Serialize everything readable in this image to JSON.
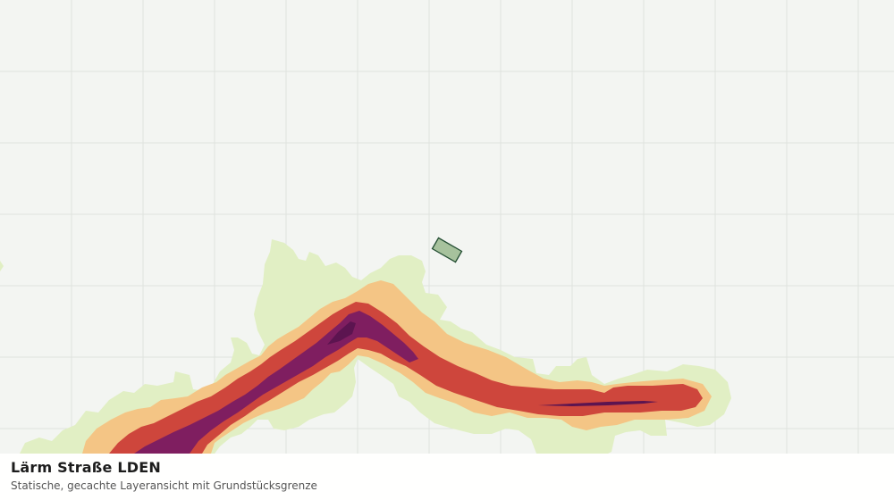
{
  "map": {
    "layer_title": "Lärm Straße LDEN",
    "layer_subtitle": "Statische, gecachte Layeransicht mit Grundstücksgrenze",
    "colors": {
      "background": "#f3f5f2",
      "grid": "#dfe2de",
      "noise_band_1": "#e1efc4",
      "noise_band_2": "#f4c585",
      "noise_band_3": "#ce463c",
      "noise_band_4": "#7f1e60",
      "noise_band_5": "#5c1450",
      "parcel_fill": "#a7c29d",
      "parcel_stroke": "#244e33"
    }
  }
}
